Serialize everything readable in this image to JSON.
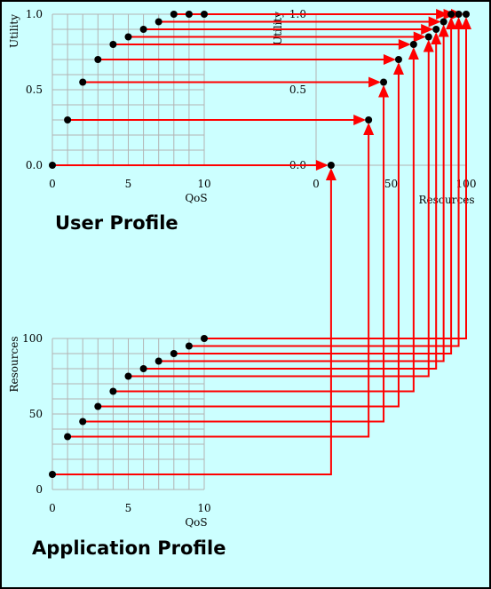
{
  "colors": {
    "background": "#ccffff",
    "grid": "#b3b3b3",
    "arrow": "#ff0000",
    "point": "#000000",
    "border": "#000000"
  },
  "titles": {
    "user_profile": "User Profile",
    "application_profile": "Application Profile"
  },
  "chart_data": [
    {
      "id": "user-profile",
      "type": "scatter",
      "xlabel": "QoS",
      "ylabel": "Utility",
      "xlim": [
        0,
        10
      ],
      "ylim": [
        0,
        1
      ],
      "xticks": [
        "0",
        "5",
        "10"
      ],
      "yticks": [
        "0.0",
        "0.5",
        "1.0"
      ],
      "grid": true,
      "x": [
        0,
        1,
        2,
        3,
        4,
        5,
        6,
        7,
        8,
        9,
        10
      ],
      "y": [
        0.0,
        0.3,
        0.55,
        0.7,
        0.8,
        0.85,
        0.9,
        0.95,
        1.0,
        1.0,
        1.0
      ]
    },
    {
      "id": "application-profile",
      "type": "scatter",
      "xlabel": "QoS",
      "ylabel": "Resources",
      "xlim": [
        0,
        10
      ],
      "ylim": [
        0,
        100
      ],
      "xticks": [
        "0",
        "5",
        "10"
      ],
      "yticks": [
        "0",
        "50",
        "100"
      ],
      "grid": true,
      "x": [
        0,
        1,
        2,
        3,
        4,
        5,
        6,
        7,
        8,
        9,
        10
      ],
      "y": [
        10,
        35,
        45,
        55,
        65,
        75,
        80,
        85,
        90,
        95,
        100
      ]
    },
    {
      "id": "utility-vs-resources",
      "type": "scatter",
      "xlabel": "Resources",
      "ylabel": "Utility",
      "xlim": [
        0,
        100
      ],
      "ylim": [
        0,
        1
      ],
      "xticks": [
        "0",
        "50",
        "100"
      ],
      "yticks": [
        "0.0",
        "0.5",
        "1.0"
      ],
      "grid": false,
      "x": [
        10,
        35,
        45,
        55,
        65,
        75,
        80,
        85,
        90,
        95,
        100
      ],
      "y": [
        0.0,
        0.3,
        0.55,
        0.7,
        0.8,
        0.85,
        0.9,
        0.95,
        1.0,
        1.0,
        1.0
      ]
    }
  ]
}
